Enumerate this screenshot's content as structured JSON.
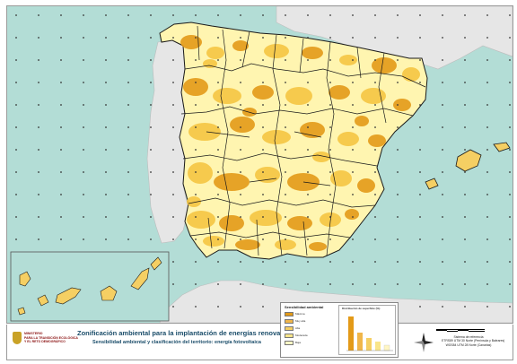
{
  "map": {
    "sea_color": "#b3ddd6",
    "land_outside_color": "#e6e6e6",
    "spain_base_color": "#fff5b0",
    "sensitivity_high_color": "#e39a18",
    "sensitivity_medium_color": "#f5c542",
    "border_color": "#1a1a1a",
    "canary_inset": true
  },
  "footer": {
    "title": "Zonificación ambiental para la implantación de energías renovables",
    "subtitle": "Sensibilidad ambiental y clasificación del territorio: energía fotovoltaica",
    "logo_text_line1": "MINISTERIO",
    "logo_text_line2": "PARA LA TRANSICIÓN ECOLÓGICA",
    "logo_text_line3": "Y EL RETO DEMOGRÁFICO",
    "legend": {
      "title": "Sensibilidad ambiental",
      "items": [
        {
          "label": "Máxima",
          "color": "#e39a18"
        },
        {
          "label": "Muy alta",
          "color": "#f0b64a"
        },
        {
          "label": "Alta",
          "color": "#f5cf63"
        },
        {
          "label": "Moderada",
          "color": "#f9e58a"
        },
        {
          "label": "Baja",
          "color": "#fff6c4"
        }
      ],
      "chart_title": "Distribución de superficie (%)"
    },
    "reference": {
      "line1": "Sistema de referencia",
      "line2": "ETRS89 UTM 30 Norte (Península y Baleares)",
      "line3": "WGS84 UTM 28 Norte (Canarias)"
    }
  }
}
